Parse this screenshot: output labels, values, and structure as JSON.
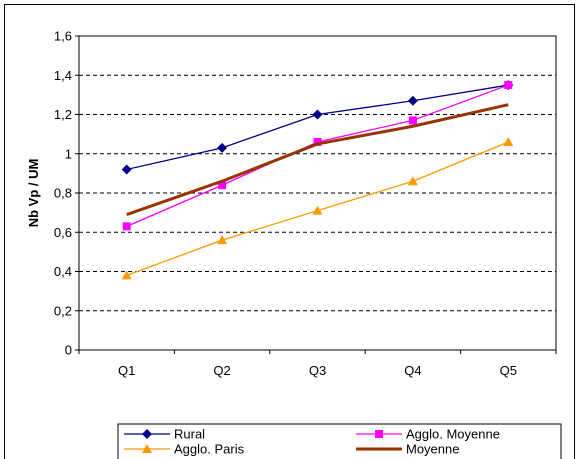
{
  "chart_data": {
    "type": "line",
    "title": "",
    "xlabel": "",
    "ylabel": "Nb Vp / UM",
    "categories": [
      "Q1",
      "Q2",
      "Q3",
      "Q4",
      "Q5"
    ],
    "ylim": [
      0,
      1.6
    ],
    "yticks": [
      "0",
      "0,2",
      "0,4",
      "0,6",
      "0,8",
      "1",
      "1,2",
      "1,4",
      "1,6"
    ],
    "grid": "horizontal dashed",
    "legend_position": "bottom",
    "series": [
      {
        "name": "Rural",
        "color": "#00008B",
        "marker": "diamond",
        "values": [
          0.92,
          1.03,
          1.2,
          1.27,
          1.35
        ]
      },
      {
        "name": "Agglo. Moyenne",
        "color": "#FF00FF",
        "marker": "square",
        "values": [
          0.63,
          0.84,
          1.06,
          1.17,
          1.35
        ]
      },
      {
        "name": "Agglo. Paris",
        "color": "#FF9900",
        "marker": "triangle",
        "values": [
          0.38,
          0.56,
          0.71,
          0.86,
          1.06
        ]
      },
      {
        "name": "Moyenne",
        "color": "#993300",
        "marker": "none",
        "values": [
          0.69,
          0.86,
          1.05,
          1.14,
          1.25
        ]
      }
    ]
  }
}
